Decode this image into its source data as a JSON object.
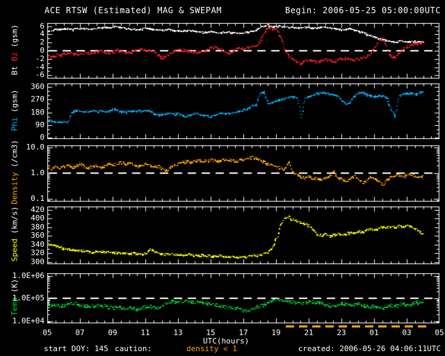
{
  "header": {
    "title": "ACE RTSW (Estimated) MAG & SWEPAM",
    "begin": "Begin: 2006-05-25 05:00:00UTC"
  },
  "footer": {
    "start_doy": "start DOY: 145",
    "caution_label": "caution:",
    "caution_value": "density < 1",
    "created": "created: 2006-05-26 04:06:11UTC"
  },
  "xaxis": {
    "label": "UTC(hours)",
    "range_hours": [
      5,
      29
    ],
    "ticks": [
      {
        "value": 5,
        "label": "05"
      },
      {
        "value": 7,
        "label": "07"
      },
      {
        "value": 9,
        "label": "09"
      },
      {
        "value": 11,
        "label": "11"
      },
      {
        "value": 13,
        "label": "13"
      },
      {
        "value": 15,
        "label": "15"
      },
      {
        "value": 17,
        "label": "17"
      },
      {
        "value": 19,
        "label": "19"
      },
      {
        "value": 21,
        "label": "21"
      },
      {
        "value": 23,
        "label": "23"
      },
      {
        "value": 25,
        "label": "01"
      },
      {
        "value": 27,
        "label": "03"
      },
      {
        "value": 29,
        "label": "05"
      }
    ],
    "caution_span_hours": [
      19.6,
      28.2
    ]
  },
  "colors": {
    "background": "#000000",
    "frame": "#ffffff",
    "bt": "#ffffff",
    "bz": "#ff2020",
    "phi": "#00b4ff",
    "density": "#ffa500",
    "speed": "#ffff00",
    "temp": "#00d435",
    "caution": "#ffa500",
    "dashed_ref": "#ffffff"
  },
  "chart_data": [
    {
      "name": "bt-bz",
      "type": "scatter",
      "scale": "linear",
      "ylabel_parts": [
        "Bt ",
        "Bz ",
        "(gsm)"
      ],
      "ylim": [
        -6.8,
        6.8
      ],
      "dashed_ref": 0,
      "yticks": [
        {
          "label": "6",
          "value": 6
        },
        {
          "label": "4",
          "value": 4
        },
        {
          "label": "2",
          "value": 2
        },
        {
          "label": "0",
          "value": 0
        },
        {
          "label": "-2",
          "value": -2
        },
        {
          "label": "-4",
          "value": -4
        },
        {
          "label": "-6",
          "value": -6
        }
      ],
      "series": [
        {
          "name": "Bt",
          "color": "#ffffff",
          "x0": 5,
          "dx": 0.25,
          "values": [
            4.8,
            5.1,
            5.3,
            5.4,
            5.5,
            5.4,
            5.3,
            5.5,
            5.6,
            5.5,
            5.4,
            5.5,
            5.6,
            5.7,
            5.8,
            5.7,
            5.9,
            6.0,
            5.8,
            5.6,
            5.5,
            5.3,
            5.2,
            5.4,
            5.6,
            5.5,
            5.3,
            5.2,
            5.1,
            5.2,
            5.3,
            5.1,
            5.0,
            4.9,
            5.0,
            5.1,
            4.9,
            4.7,
            4.6,
            4.7,
            4.8,
            4.6,
            4.5,
            4.6,
            4.7,
            4.5,
            4.4,
            4.3,
            4.5,
            4.6,
            4.8,
            5.2,
            5.8,
            6.2,
            6.3,
            5.9,
            6.1,
            6.2,
            5.9,
            5.8,
            5.9,
            5.8,
            5.7,
            5.8,
            5.8,
            5.6,
            5.7,
            5.8,
            5.9,
            5.7,
            5.5,
            5.3,
            5.2,
            5.4,
            5.5,
            5.2,
            4.9,
            4.6,
            4.2,
            3.8,
            3.4,
            3.0,
            2.8,
            2.6,
            2.4,
            2.3,
            2.5,
            2.4,
            2.2,
            2.3,
            2.4,
            2.3,
            2.4
          ]
        },
        {
          "name": "Bz",
          "color": "#ff2020",
          "x0": 5,
          "dx": 0.25,
          "values": [
            -1.2,
            -1.4,
            -1.0,
            -0.9,
            -0.6,
            -0.4,
            -0.6,
            -0.8,
            -0.6,
            -0.3,
            -0.5,
            -0.4,
            -0.2,
            0.1,
            -0.2,
            -0.4,
            -0.1,
            0.2,
            0.0,
            -0.3,
            -0.5,
            -0.2,
            0.3,
            0.5,
            0.2,
            0.0,
            -0.3,
            -1.0,
            -1.6,
            -1.2,
            -0.5,
            0.1,
            0.4,
            0.2,
            -0.1,
            0.1,
            -0.2,
            -0.4,
            -0.1,
            0.2,
            0.8,
            1.0,
            0.6,
            0.2,
            -0.6,
            -0.3,
            0.4,
            0.7,
            0.5,
            0.9,
            1.1,
            1.4,
            2.5,
            4.5,
            5.8,
            5.2,
            5.6,
            3.5,
            0.5,
            -1.2,
            -2.0,
            -2.6,
            -3.0,
            -2.3,
            -2.1,
            -2.4,
            -2.8,
            -2.3,
            -2.1,
            -2.3,
            -2.7,
            -2.2,
            -1.9,
            -1.8,
            -2.0,
            -2.1,
            -1.9,
            -1.7,
            -1.4,
            -0.6,
            0.8,
            2.6,
            2.9,
            0.5,
            -1.2,
            -1.4,
            -0.3,
            0.6,
            1.1,
            1.6,
            1.9,
            1.8,
            2.1
          ]
        }
      ]
    },
    {
      "name": "phi",
      "type": "scatter",
      "scale": "linear",
      "ylabel_parts": [
        "Phi ",
        "(gsm)"
      ],
      "ylim": [
        -10,
        385
      ],
      "yticks": [
        {
          "label": "360",
          "value": 360
        },
        {
          "label": "270",
          "value": 270
        },
        {
          "label": "180",
          "value": 180
        },
        {
          "label": "90",
          "value": 90
        },
        {
          "label": "0",
          "value": 0
        }
      ],
      "series": [
        {
          "name": "Phi",
          "color": "#00b4ff",
          "x0": 5,
          "dx": 0.25,
          "values": [
            135,
            120,
            115,
            112,
            118,
            112,
            188,
            192,
            190,
            186,
            188,
            190,
            188,
            190,
            192,
            190,
            210,
            195,
            188,
            185,
            188,
            190,
            192,
            190,
            195,
            190,
            172,
            165,
            170,
            175,
            172,
            168,
            175,
            160,
            152,
            165,
            172,
            168,
            162,
            158,
            148,
            160,
            172,
            178,
            170,
            175,
            182,
            188,
            200,
            208,
            232,
            228,
            320,
            325,
            238,
            252,
            262,
            275,
            282,
            290,
            292,
            288,
            150,
            285,
            295,
            305,
            318,
            322,
            318,
            312,
            305,
            298,
            262,
            242,
            255,
            300,
            318,
            325,
            310,
            300,
            295,
            305,
            298,
            290,
            200,
            160,
            295,
            315,
            322,
            318,
            310,
            325,
            330
          ]
        }
      ]
    },
    {
      "name": "density",
      "type": "scatter",
      "scale": "log",
      "ylabel_parts": [
        "Density ",
        "(/cm3)"
      ],
      "ylim": [
        0.08,
        12
      ],
      "dashed_ref": 1,
      "yticks": [
        {
          "label": "10.0",
          "value": 10
        },
        {
          "label": "1.0",
          "value": 1
        },
        {
          "label": "0.1",
          "value": 0.1
        }
      ],
      "series": [
        {
          "name": "Density",
          "color": "#ffa500",
          "x0": 5,
          "dx": 0.25,
          "values": [
            1.8,
            1.5,
            2.0,
            1.6,
            1.9,
            2.2,
            1.7,
            2.0,
            2.3,
            1.8,
            1.5,
            1.9,
            2.1,
            1.7,
            2.0,
            2.4,
            2.0,
            2.5,
            2.8,
            2.3,
            2.6,
            2.2,
            1.8,
            2.1,
            2.4,
            2.0,
            1.7,
            2.0,
            1.6,
            1.3,
            1.7,
            2.1,
            2.4,
            2.8,
            3.1,
            2.7,
            3.0,
            3.3,
            2.9,
            3.2,
            3.5,
            3.0,
            3.3,
            3.6,
            3.2,
            3.4,
            3.0,
            3.3,
            3.6,
            4.0,
            4.4,
            3.8,
            3.2,
            2.8,
            2.4,
            2.1,
            1.8,
            1.6,
            1.4,
            2.8,
            1.2,
            0.9,
            0.75,
            0.65,
            0.8,
            0.6,
            0.7,
            0.55,
            0.65,
            0.8,
            1.3,
            0.7,
            0.6,
            0.5,
            0.65,
            0.8,
            0.6,
            0.45,
            0.55,
            0.7,
            0.6,
            0.5,
            0.35,
            0.55,
            0.7,
            0.8,
            0.9,
            0.75,
            0.85,
            0.9,
            0.8,
            0.7,
            0.85
          ]
        }
      ]
    },
    {
      "name": "speed",
      "type": "scatter",
      "scale": "linear",
      "ylabel_parts": [
        "Speed ",
        "(km/s)"
      ],
      "ylim": [
        295,
        428
      ],
      "yticks": [
        {
          "label": "420",
          "value": 420
        },
        {
          "label": "400",
          "value": 400
        },
        {
          "label": "380",
          "value": 380
        },
        {
          "label": "360",
          "value": 360
        },
        {
          "label": "340",
          "value": 340
        },
        {
          "label": "320",
          "value": 320
        },
        {
          "label": "300",
          "value": 300
        }
      ],
      "series": [
        {
          "name": "Speed",
          "color": "#ffff00",
          "x0": 5,
          "dx": 0.25,
          "values": [
            343,
            340,
            337,
            334,
            332,
            330,
            331,
            328,
            326,
            327,
            325,
            324,
            326,
            325,
            323,
            324,
            322,
            323,
            321,
            320,
            321,
            322,
            320,
            319,
            321,
            330,
            326,
            322,
            319,
            318,
            320,
            317,
            318,
            316,
            317,
            319,
            316,
            315,
            317,
            314,
            315,
            313,
            316,
            314,
            312,
            314,
            311,
            313,
            312,
            314,
            316,
            315,
            317,
            320,
            324,
            335,
            355,
            385,
            402,
            405,
            398,
            395,
            392,
            388,
            385,
            375,
            365,
            362,
            366,
            360,
            363,
            367,
            362,
            365,
            370,
            368,
            372,
            370,
            374,
            377,
            375,
            378,
            382,
            380,
            383,
            380,
            384,
            381,
            385,
            382,
            378,
            372,
            362
          ]
        }
      ]
    },
    {
      "name": "temp",
      "type": "scatter",
      "scale": "log",
      "ylabel_parts": [
        "Temp ",
        "(K)"
      ],
      "ylim": [
        8000,
        1300000
      ],
      "dashed_ref": 100000,
      "yticks": [
        {
          "label": "1.0E+06",
          "value": 1000000
        },
        {
          "label": "1.0E+05",
          "value": 100000
        },
        {
          "label": "1.0E+04",
          "value": 10000
        }
      ],
      "series": [
        {
          "name": "Temp",
          "color": "#00d435",
          "x0": 5,
          "dx": 0.25,
          "values": [
            58000,
            52000,
            55000,
            48000,
            52000,
            60000,
            68000,
            62000,
            55000,
            50000,
            52000,
            48000,
            50000,
            46000,
            50000,
            44000,
            42000,
            45000,
            40000,
            38000,
            42000,
            36000,
            34000,
            38000,
            45000,
            50000,
            42000,
            40000,
            52000,
            60000,
            72000,
            78000,
            82000,
            75000,
            80000,
            72000,
            68000,
            74000,
            70000,
            65000,
            60000,
            55000,
            50000,
            45000,
            42000,
            38000,
            40000,
            35000,
            30000,
            28000,
            34000,
            40000,
            48000,
            58000,
            70000,
            82000,
            90000,
            95000,
            88000,
            80000,
            72000,
            65000,
            60000,
            70000,
            78000,
            72000,
            68000,
            62000,
            58000,
            52000,
            46000,
            55000,
            62000,
            58000,
            52000,
            56000,
            60000,
            55000,
            48000,
            44000,
            50000,
            45000,
            40000,
            46000,
            52000,
            48000,
            55000,
            60000,
            52000,
            58000,
            65000,
            72000,
            80000
          ]
        }
      ]
    }
  ]
}
